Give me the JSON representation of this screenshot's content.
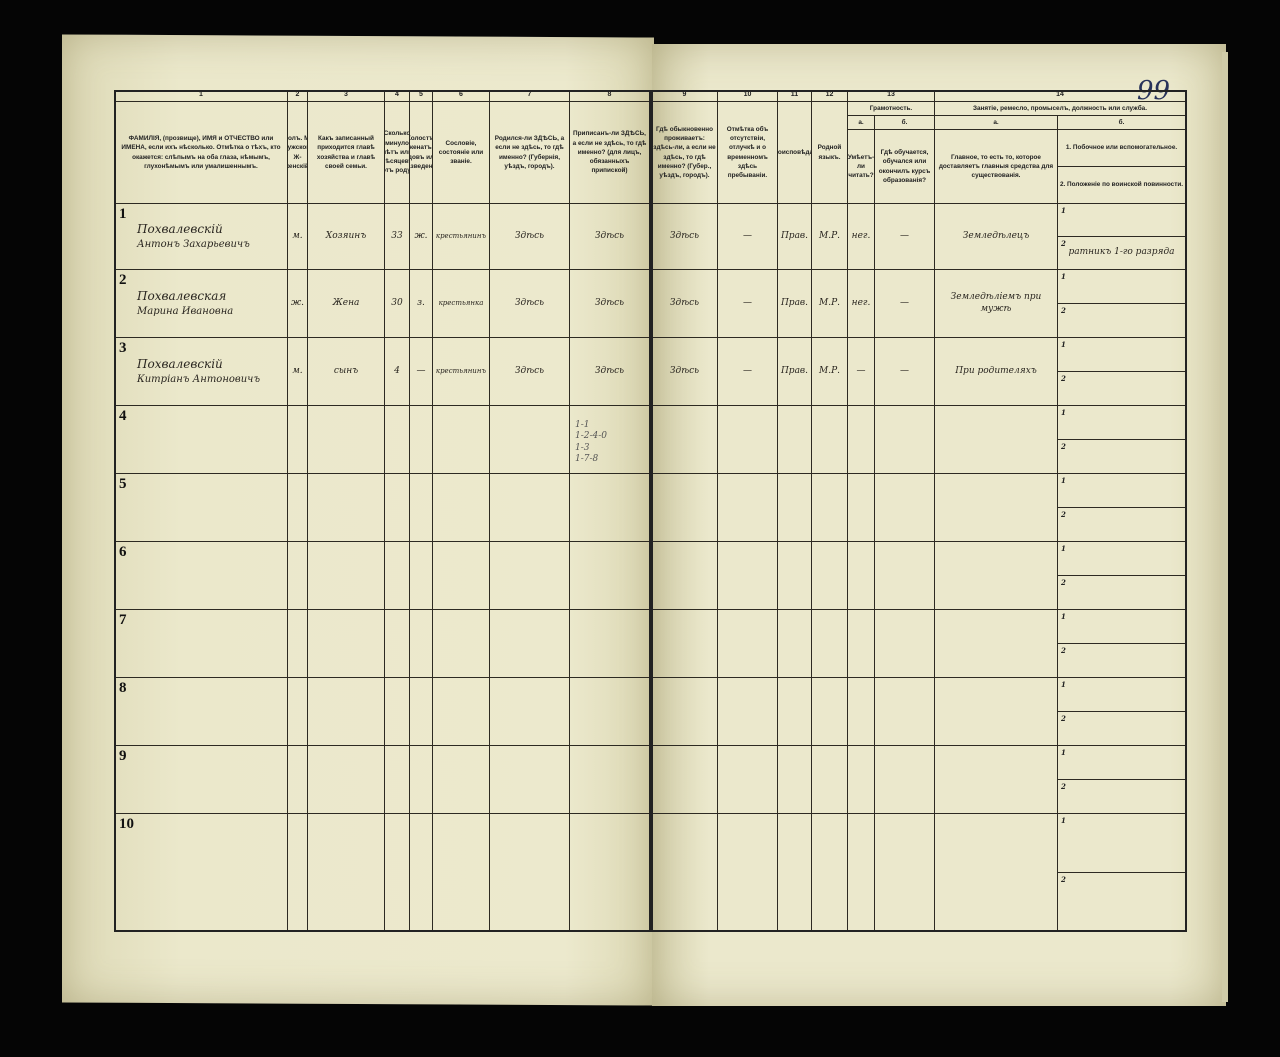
{
  "page_number": "99",
  "left_headers": [
    {
      "num": "1",
      "text": "ФАМИЛІЯ, (прозвище), ИМЯ и ОТЧЕСТВО или ИМЕНА, если ихъ нѣсколько. Отмѣтка о тѣхъ, кто окажется: слѣпымъ на оба глаза, нѣмымъ, глухонѣмымъ или умалишеннымъ."
    },
    {
      "num": "2",
      "text": "Полъ. М-мужской. Ж-женскій."
    },
    {
      "num": "3",
      "text": "Какъ записанный приходится главѣ хозяйства и главѣ своей семьи."
    },
    {
      "num": "4",
      "text": "Сколько минуло лѣтъ или мѣсяцевъ отъ роду."
    },
    {
      "num": "5",
      "text": "Холостъ, женатъ, вдовъ или разведенъ."
    },
    {
      "num": "6",
      "text": "Сословіе, состояніе или званіе."
    },
    {
      "num": "7",
      "text": "Родился-ли ЗДѢСЬ, а если не здѣсь, то гдѣ именно? (Губернія, уѣздъ, городъ)."
    },
    {
      "num": "8",
      "text": "Приписанъ-ли ЗДѢСЬ, а если не здѣсь, то гдѣ именно? (для лицъ, обязанныхъ припиской)"
    }
  ],
  "right_headers": [
    {
      "num": "9",
      "text": "Гдѣ обыкновенно проживаетъ: здѣсь-ли, а если не здѣсь, то гдѣ именно? (Губер., уѣздъ, городъ)."
    },
    {
      "num": "10",
      "text": "Отмѣтка объ отсутствіи, отлучкѣ и о временномъ здѣсь пребываніи."
    },
    {
      "num": "11",
      "text": "Вѣроисповѣданіе."
    },
    {
      "num": "12",
      "text": "Родной языкъ."
    },
    {
      "num": "13",
      "text": "Грамотность.",
      "sub": [
        {
          "num": "а.",
          "text": "Умѣетъ-ли читать?"
        },
        {
          "num": "б.",
          "text": "Гдѣ обучается, обучался или окончилъ курсъ образованія?"
        }
      ]
    },
    {
      "num": "14",
      "text": "Занятіе, ремесло, промыселъ, должность или служба.",
      "sub": [
        {
          "num": "а.",
          "text": "Главное, то есть то, которое доставляетъ главныя средства для существованія."
        },
        {
          "num": "б.",
          "text": "1. Побочное или вспомогательное.",
          "text2": "2. Положеніе по воинской повинности."
        }
      ]
    }
  ],
  "rows": [
    {
      "n": "1",
      "surname": "Похвалевскій",
      "given": "Антонъ Захарьевичъ",
      "sex": "м.",
      "relation": "Хозяинъ",
      "age": "33",
      "marital": "ж.",
      "estate": "крестьянинъ",
      "born": "Здѣсь",
      "registered": "Здѣсь",
      "residence": "Здѣсь",
      "absence": "—",
      "religion": "Прав.",
      "language": "М.Р.",
      "literate": "нег.",
      "education": "—",
      "occupation": "Земледѣлецъ",
      "secondary": "",
      "military": "ратникъ 1-го разряда"
    },
    {
      "n": "2",
      "surname": "Похвалевская",
      "given": "Марина Ивановна",
      "sex": "ж.",
      "relation": "Жена",
      "age": "30",
      "marital": "з.",
      "estate": "крестьянка",
      "born": "Здѣсь",
      "registered": "Здѣсь",
      "residence": "Здѣсь",
      "absence": "—",
      "religion": "Прав.",
      "language": "М.Р.",
      "literate": "нег.",
      "education": "—",
      "occupation": "Земледѣліемъ при мужѣ",
      "secondary": "",
      "military": ""
    },
    {
      "n": "3",
      "surname": "Похвалевскій",
      "given": "Китріанъ Антоновичъ",
      "sex": "м.",
      "relation": "сынъ",
      "age": "4",
      "marital": "—",
      "estate": "крестьянинъ",
      "born": "Здѣсь",
      "registered": "Здѣсь",
      "residence": "Здѣсь",
      "absence": "—",
      "religion": "Прав.",
      "language": "М.Р.",
      "literate": "—",
      "education": "—",
      "occupation": "При родителяхъ",
      "secondary": "",
      "military": ""
    },
    {
      "n": "4"
    },
    {
      "n": "5"
    },
    {
      "n": "6"
    },
    {
      "n": "7"
    },
    {
      "n": "8"
    },
    {
      "n": "9"
    },
    {
      "n": "10"
    }
  ],
  "margin_note": [
    "1-1",
    "1-2-4-0",
    "1-3",
    "1-7-8"
  ]
}
